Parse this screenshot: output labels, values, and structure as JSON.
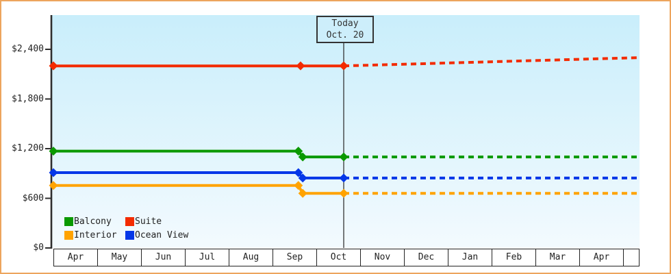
{
  "chart_data": {
    "type": "line",
    "title": "",
    "description": "Cabin price history with dotted future projection after today marker",
    "grid": false,
    "legend_position": "bottom-left",
    "y_axis": {
      "max_value": 2400,
      "ticks": [
        {
          "value": 0,
          "label": "$0"
        },
        {
          "value": 600,
          "label": "$600"
        },
        {
          "value": 1200,
          "label": "$1,200"
        },
        {
          "value": 1800,
          "label": "$1,800"
        },
        {
          "value": 2400,
          "label": "$2,400"
        }
      ]
    },
    "x_axis": {
      "unit": "month",
      "labels": [
        "Apr",
        "May",
        "Jun",
        "Jul",
        "Aug",
        "Sep",
        "Oct",
        "Nov",
        "Dec",
        "Jan",
        "Feb",
        "Mar",
        "Apr",
        ""
      ],
      "range_months": [
        0,
        13.375
      ]
    },
    "today_marker": {
      "line1": "Today",
      "line2": "Oct. 20",
      "x_month": 6.625
    },
    "series": [
      {
        "name": "Suite",
        "color": "#f32b00",
        "history": [
          [
            0,
            2200
          ],
          [
            5.64,
            2200
          ],
          [
            6.625,
            2200
          ]
        ],
        "projection": [
          [
            6.625,
            2200
          ],
          [
            13.375,
            2300
          ]
        ]
      },
      {
        "name": "Balcony",
        "color": "#0a9900",
        "history": [
          [
            0,
            1170
          ],
          [
            5.59,
            1170
          ],
          [
            5.69,
            1100
          ],
          [
            6.625,
            1100
          ]
        ],
        "projection": [
          [
            6.625,
            1100
          ],
          [
            13.375,
            1100
          ]
        ]
      },
      {
        "name": "Ocean View",
        "color": "#0437e8",
        "history": [
          [
            0,
            910
          ],
          [
            5.59,
            910
          ],
          [
            5.69,
            845
          ],
          [
            6.625,
            845
          ]
        ],
        "projection": [
          [
            6.625,
            845
          ],
          [
            13.375,
            845
          ]
        ]
      },
      {
        "name": "Interior",
        "color": "#ffa300",
        "history": [
          [
            0,
            755
          ],
          [
            5.59,
            755
          ],
          [
            5.69,
            660
          ],
          [
            6.625,
            660
          ]
        ],
        "projection": [
          [
            6.625,
            660
          ],
          [
            13.375,
            660
          ]
        ]
      }
    ]
  },
  "today_box": {
    "line1": "Today",
    "line2": "Oct. 20"
  },
  "legend": {
    "items": [
      {
        "label": "Balcony",
        "color": "#0a9900"
      },
      {
        "label": "Suite",
        "color": "#f32b00"
      },
      {
        "label": "Interior",
        "color": "#ffa300"
      },
      {
        "label": "Ocean View",
        "color": "#0437e8"
      }
    ]
  },
  "colors": {
    "frame_border": "#eda55d",
    "plot_bg_top": "#c9eefb",
    "plot_bg_bottom": "#f3fafe",
    "axis": "#2e2e2e",
    "today_line": "#333333",
    "text": "#222222"
  }
}
